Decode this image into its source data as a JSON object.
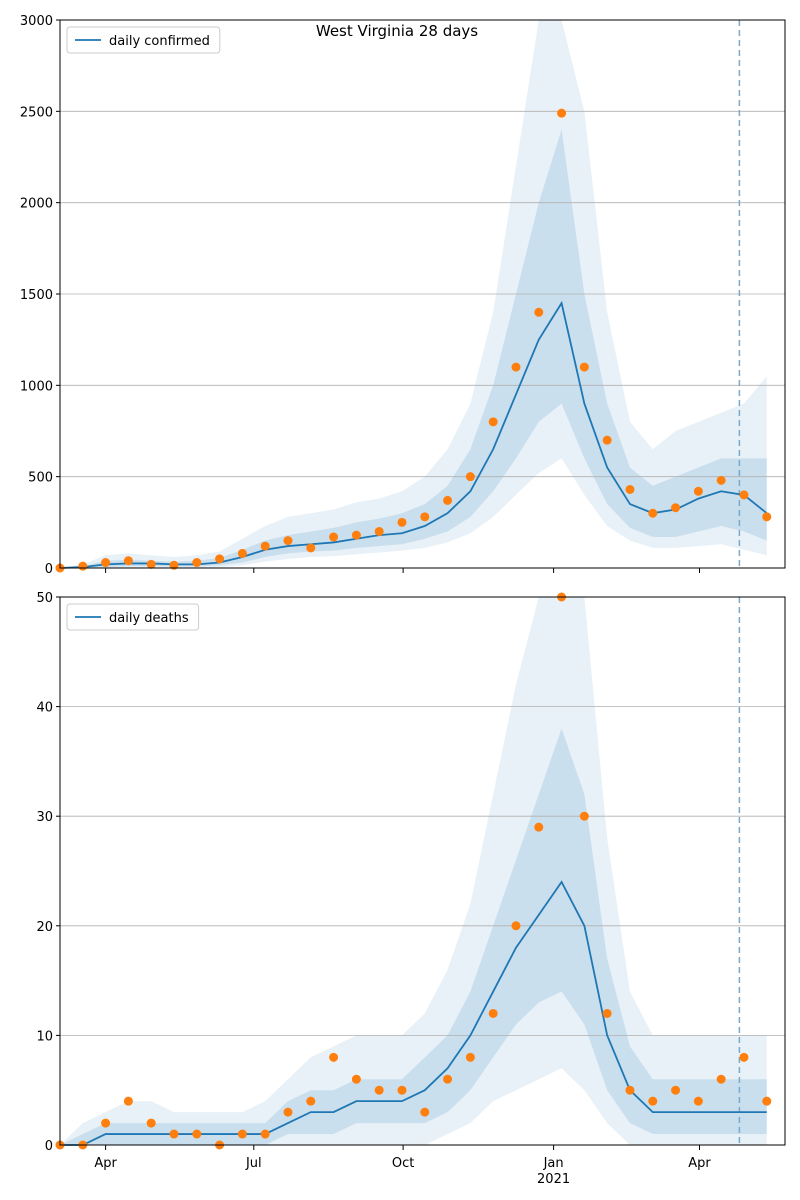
{
  "title": "West Virginia 28 days",
  "chart_data": [
    {
      "type": "line",
      "x": [
        0,
        2,
        4,
        6,
        8,
        10,
        12,
        14,
        16,
        18,
        20,
        22,
        24,
        26,
        28,
        30,
        32,
        34,
        36,
        38,
        40,
        42,
        44,
        46,
        48,
        50,
        52,
        54,
        56,
        58,
        60,
        62
      ],
      "xlim": [
        0,
        63.6
      ],
      "xticks": [
        {
          "value": 4,
          "label": "Apr"
        },
        {
          "value": 17,
          "label": "Jul"
        },
        {
          "value": 30.1,
          "label": "Oct"
        },
        {
          "value": 43.3,
          "label": "Jan 2021"
        },
        {
          "value": 56.1,
          "label": "Apr"
        }
      ],
      "show_xtick_labels": false,
      "ylim": [
        0,
        3000
      ],
      "yticks": [
        0,
        500,
        1000,
        1500,
        2000,
        2500,
        3000
      ],
      "grid": true,
      "legend": "upper left",
      "vline": {
        "value": 59.6,
        "color": "#77aacc"
      },
      "series": [
        {
          "name": "daily confirmed",
          "color": "#1f77b4",
          "values": [
            0,
            5,
            20,
            25,
            25,
            20,
            20,
            30,
            60,
            100,
            120,
            130,
            140,
            160,
            180,
            190,
            230,
            300,
            420,
            650,
            950,
            1250,
            1450,
            900,
            550,
            350,
            300,
            320,
            380,
            420,
            400,
            300
          ]
        }
      ],
      "observed": {
        "color": "#ff7f0e",
        "values": [
          0,
          10,
          30,
          40,
          20,
          15,
          30,
          50,
          80,
          120,
          150,
          110,
          170,
          180,
          200,
          250,
          280,
          370,
          500,
          800,
          1100,
          1400,
          2490,
          1100,
          700,
          430,
          300,
          330,
          420,
          480,
          400,
          280
        ]
      },
      "bands": [
        {
          "color": "#1f77b4",
          "opacity": 0.1,
          "upper": [
            0,
            20,
            70,
            80,
            70,
            60,
            70,
            90,
            160,
            230,
            280,
            300,
            320,
            360,
            380,
            420,
            500,
            650,
            900,
            1400,
            2200,
            3000,
            3000,
            2500,
            1400,
            800,
            650,
            750,
            800,
            850,
            900,
            1050
          ],
          "lower": [
            0,
            0,
            0,
            3,
            3,
            2,
            2,
            5,
            15,
            35,
            50,
            60,
            65,
            75,
            85,
            95,
            110,
            140,
            190,
            280,
            400,
            520,
            600,
            400,
            230,
            150,
            110,
            110,
            120,
            130,
            100,
            70
          ]
        },
        {
          "color": "#1f77b4",
          "opacity": 0.15,
          "upper": [
            0,
            10,
            40,
            45,
            40,
            35,
            40,
            55,
            100,
            150,
            180,
            200,
            220,
            250,
            270,
            300,
            350,
            450,
            650,
            1000,
            1500,
            2000,
            2400,
            1500,
            900,
            550,
            450,
            500,
            550,
            600,
            600,
            600
          ],
          "lower": [
            0,
            0,
            5,
            10,
            10,
            8,
            8,
            15,
            30,
            60,
            80,
            90,
            95,
            110,
            120,
            130,
            160,
            200,
            280,
            420,
            600,
            800,
            900,
            600,
            350,
            220,
            170,
            170,
            200,
            230,
            200,
            150
          ]
        }
      ]
    },
    {
      "type": "line",
      "x": [
        0,
        2,
        4,
        6,
        8,
        10,
        12,
        14,
        16,
        18,
        20,
        22,
        24,
        26,
        28,
        30,
        32,
        34,
        36,
        38,
        40,
        42,
        44,
        46,
        48,
        50,
        52,
        54,
        56,
        58,
        60,
        62
      ],
      "xlim": [
        0,
        63.6
      ],
      "xticks": [
        {
          "value": 4,
          "label": "Apr"
        },
        {
          "value": 17,
          "label": "Jul"
        },
        {
          "value": 30.1,
          "label": "Oct"
        },
        {
          "value": 43.3,
          "label": "Jan 2021"
        },
        {
          "value": 56.1,
          "label": "Apr"
        }
      ],
      "show_xtick_labels": true,
      "ylim": [
        0,
        50
      ],
      "yticks": [
        0,
        10,
        20,
        30,
        40,
        50
      ],
      "grid": true,
      "legend": "upper left",
      "vline": {
        "value": 59.6,
        "color": "#77aacc"
      },
      "series": [
        {
          "name": "daily deaths",
          "color": "#1f77b4",
          "values": [
            0,
            0,
            1,
            1,
            1,
            1,
            1,
            1,
            1,
            1,
            2,
            3,
            3,
            4,
            4,
            4,
            5,
            7,
            10,
            14,
            18,
            21,
            24,
            20,
            10,
            5,
            3,
            3,
            3,
            3,
            3,
            3
          ]
        }
      ],
      "observed": {
        "color": "#ff7f0e",
        "values": [
          0,
          0,
          2,
          4,
          2,
          1,
          1,
          0,
          1,
          1,
          3,
          4,
          8,
          6,
          5,
          5,
          3,
          6,
          8,
          12,
          20,
          29,
          50,
          30,
          12,
          5,
          4,
          5,
          4,
          6,
          8,
          4
        ]
      },
      "bands": [
        {
          "color": "#1f77b4",
          "opacity": 0.1,
          "upper": [
            0,
            2,
            3,
            4,
            4,
            3,
            3,
            3,
            3,
            4,
            6,
            8,
            9,
            10,
            10,
            10,
            12,
            16,
            22,
            32,
            42,
            50,
            50,
            50,
            28,
            14,
            10,
            10,
            10,
            10,
            10,
            10
          ],
          "lower": [
            0,
            0,
            0,
            0,
            0,
            0,
            0,
            0,
            0,
            0,
            0,
            0,
            0,
            0,
            0,
            0,
            0,
            1,
            2,
            4,
            5,
            6,
            7,
            5,
            2,
            0,
            0,
            0,
            0,
            0,
            0,
            0
          ]
        },
        {
          "color": "#1f77b4",
          "opacity": 0.15,
          "upper": [
            0,
            1,
            2,
            2,
            2,
            2,
            2,
            2,
            2,
            2,
            4,
            5,
            5,
            6,
            6,
            6,
            8,
            10,
            14,
            20,
            26,
            32,
            38,
            32,
            17,
            9,
            6,
            6,
            6,
            6,
            6,
            6
          ],
          "lower": [
            0,
            0,
            0,
            0,
            0,
            0,
            0,
            0,
            0,
            0,
            1,
            1,
            1,
            2,
            2,
            2,
            2,
            3,
            5,
            8,
            11,
            13,
            14,
            11,
            5,
            2,
            1,
            1,
            1,
            1,
            1,
            1
          ]
        }
      ]
    }
  ]
}
